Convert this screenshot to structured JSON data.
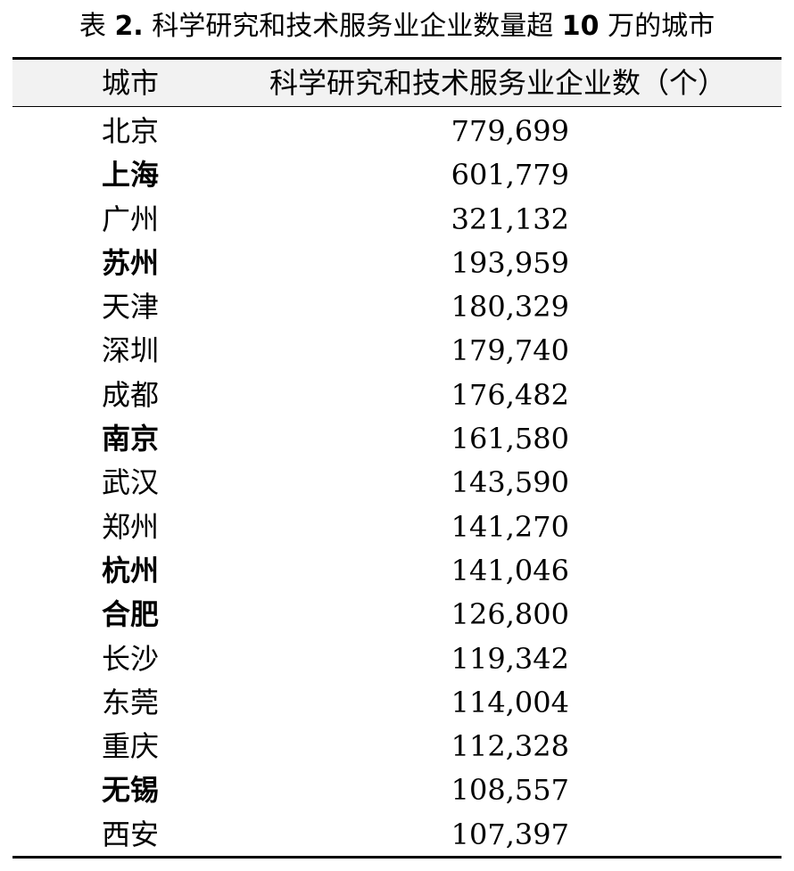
{
  "caption": {
    "prefix": "表 ",
    "number": "2.",
    "text_part1": " 科学研究和技术服务业企业数量超 ",
    "threshold": "10",
    "text_part2": " 万的城市"
  },
  "table": {
    "headers": {
      "city": "城市",
      "count": "科学研究和技术服务业企业数（个）"
    },
    "rows": [
      {
        "city": "北京",
        "count": "779,699",
        "bold": false
      },
      {
        "city": "上海",
        "count": "601,779",
        "bold": true
      },
      {
        "city": "广州",
        "count": "321,132",
        "bold": false
      },
      {
        "city": "苏州",
        "count": "193,959",
        "bold": true
      },
      {
        "city": "天津",
        "count": "180,329",
        "bold": false
      },
      {
        "city": "深圳",
        "count": "179,740",
        "bold": false
      },
      {
        "city": "成都",
        "count": "176,482",
        "bold": false
      },
      {
        "city": "南京",
        "count": "161,580",
        "bold": true
      },
      {
        "city": "武汉",
        "count": "143,590",
        "bold": false
      },
      {
        "city": "郑州",
        "count": "141,270",
        "bold": false
      },
      {
        "city": "杭州",
        "count": "141,046",
        "bold": true
      },
      {
        "city": "合肥",
        "count": "126,800",
        "bold": true
      },
      {
        "city": "长沙",
        "count": "119,342",
        "bold": false
      },
      {
        "city": "东莞",
        "count": "114,004",
        "bold": false
      },
      {
        "city": "重庆",
        "count": "112,328",
        "bold": false
      },
      {
        "city": "无锡",
        "count": "108,557",
        "bold": true
      },
      {
        "city": "西安",
        "count": "107,397",
        "bold": false
      }
    ]
  }
}
